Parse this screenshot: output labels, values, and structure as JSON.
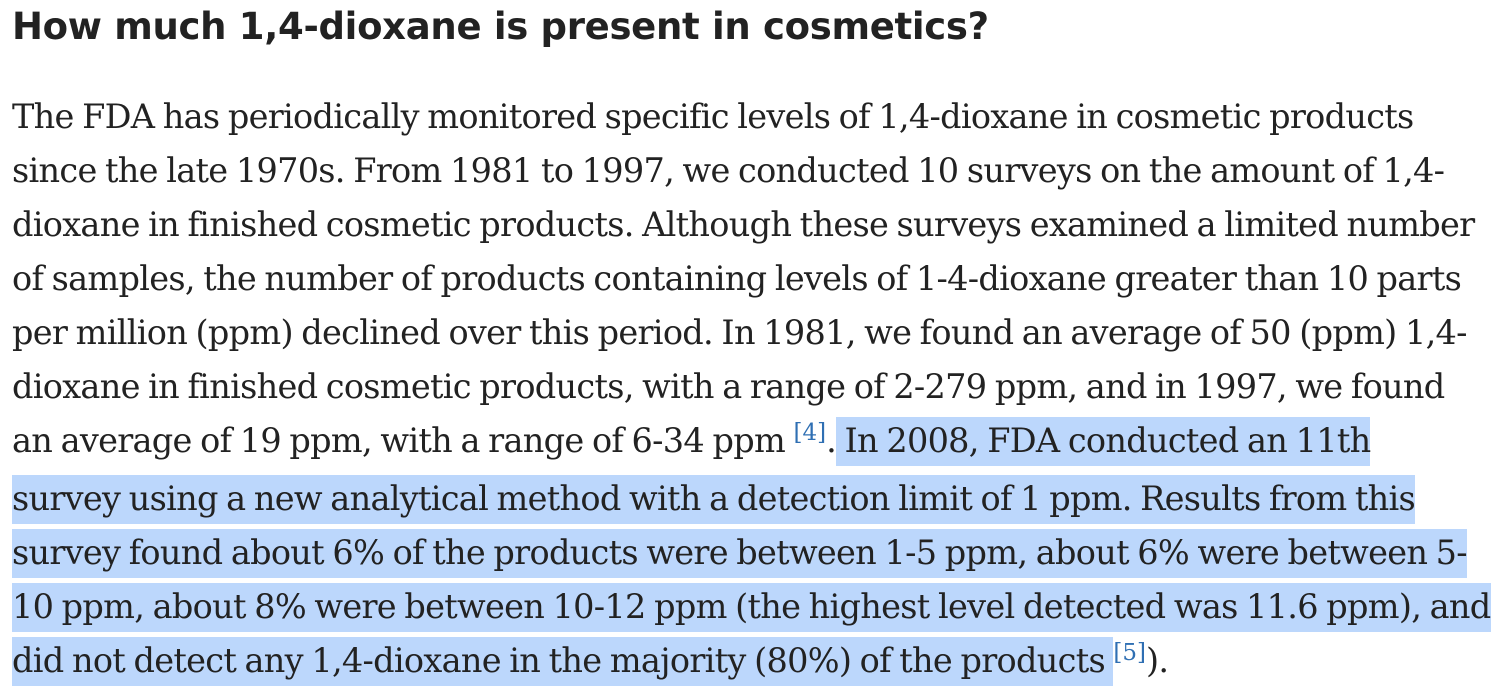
{
  "article": {
    "heading": "How much 1,4-dioxane is present in cosmetics?",
    "lines": [
      "The FDA has periodically monitored specific levels of 1,4-dioxane in cosmetic products",
      "since the late 1970s. From 1981 to 1997, we conducted 10 surveys on the amount of 1,4-",
      "dioxane in finished cosmetic products. Although these surveys examined a limited number",
      "of samples, the number of products containing levels of 1-4-dioxane greater than 10 parts",
      "per million (ppm) declined over this period. In 1981, we found an average of 50 (ppm) 1,4-",
      "dioxane in finished cosmetic products, with a range of 2-279 ppm, and in 1997, we found"
    ],
    "line7_pre": "an average of 19 ppm, with a range of 6-34 ppm ",
    "citation_4": "[4]",
    "line7_dot": ".",
    "line7_sel": " In 2008, FDA conducted an 11th",
    "line8": "survey using a new analytical method with a detection limit of 1 ppm. Results from this",
    "line9": "survey found about 6% of the products were between 1-5 ppm, about 6% were between 5-",
    "line10": "10 ppm, about 8% were between 10-12 ppm (the highest level detected was 11.6 ppm), and",
    "line11_sel": "did not detect any 1,4-dioxane in the majority (80%) of the products ",
    "citation_5": "[5]",
    "line11_end": ")."
  },
  "colors": {
    "text": "#222222",
    "selection": "#bcd7fc",
    "citation_link": "#2f6fb3"
  }
}
